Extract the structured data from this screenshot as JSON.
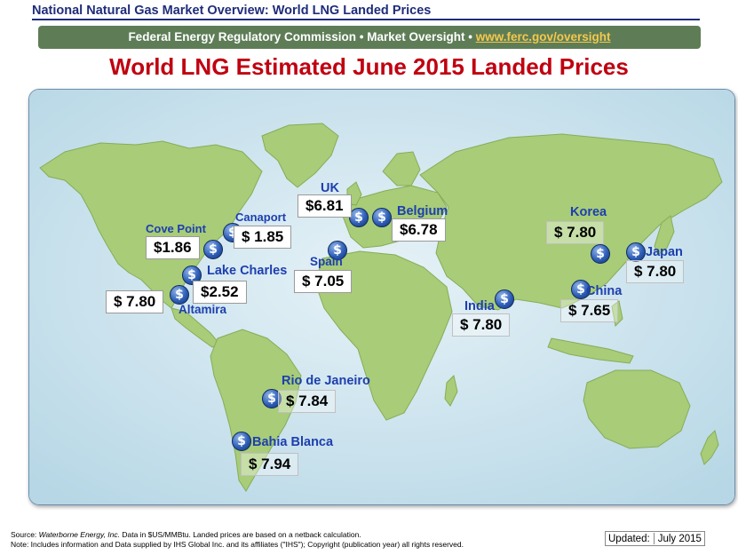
{
  "header": {
    "title": "National Natural Gas Market Overview: World LNG Landed Prices",
    "banner_text": "Federal Energy Regulatory Commission • Market Oversight • ",
    "banner_link": "www.ferc.gov/oversight"
  },
  "map": {
    "title": "World LNG Estimated June 2015 Landed Prices",
    "colors": {
      "ocean": "#c9e3ee",
      "land": "#a8cc78",
      "label": "#1d3fae",
      "coin": "#2f5fb8"
    },
    "icon": "dollar-coin-icon",
    "locations": [
      {
        "name": "UK",
        "price": "$6.81"
      },
      {
        "name": "Belgium",
        "price": "$6.78"
      },
      {
        "name": "Cove Point",
        "price": "$1.86"
      },
      {
        "name": "Canaport",
        "price": "$  1.85"
      },
      {
        "name": "Spain",
        "price": "$  7.05"
      },
      {
        "name": "Lake Charles",
        "price": "$2.52"
      },
      {
        "name": "Altamira",
        "price": "$  7.80"
      },
      {
        "name": "Korea",
        "price": "$  7.80"
      },
      {
        "name": "Japan",
        "price": "$  7.80"
      },
      {
        "name": "China",
        "price": "$  7.65"
      },
      {
        "name": "India",
        "price": "$  7.80"
      },
      {
        "name": "Rio de Janeiro",
        "price": "$  7.84"
      },
      {
        "name": "Bahia Blanca",
        "price": "$  7.94"
      }
    ]
  },
  "footer": {
    "source_prefix": "Source: ",
    "source_name": "Waterborne Energy, Inc.",
    "source_rest": "  Data in $US/MMBtu. Landed prices are based on a netback calculation.",
    "note": "Note: Includes information and Data supplied by IHS Global Inc. and its affiliates (\"IHS\"); Copyright (publication year) all rights reserved.",
    "updated_label": "Updated:",
    "updated_value": "July 2015"
  }
}
